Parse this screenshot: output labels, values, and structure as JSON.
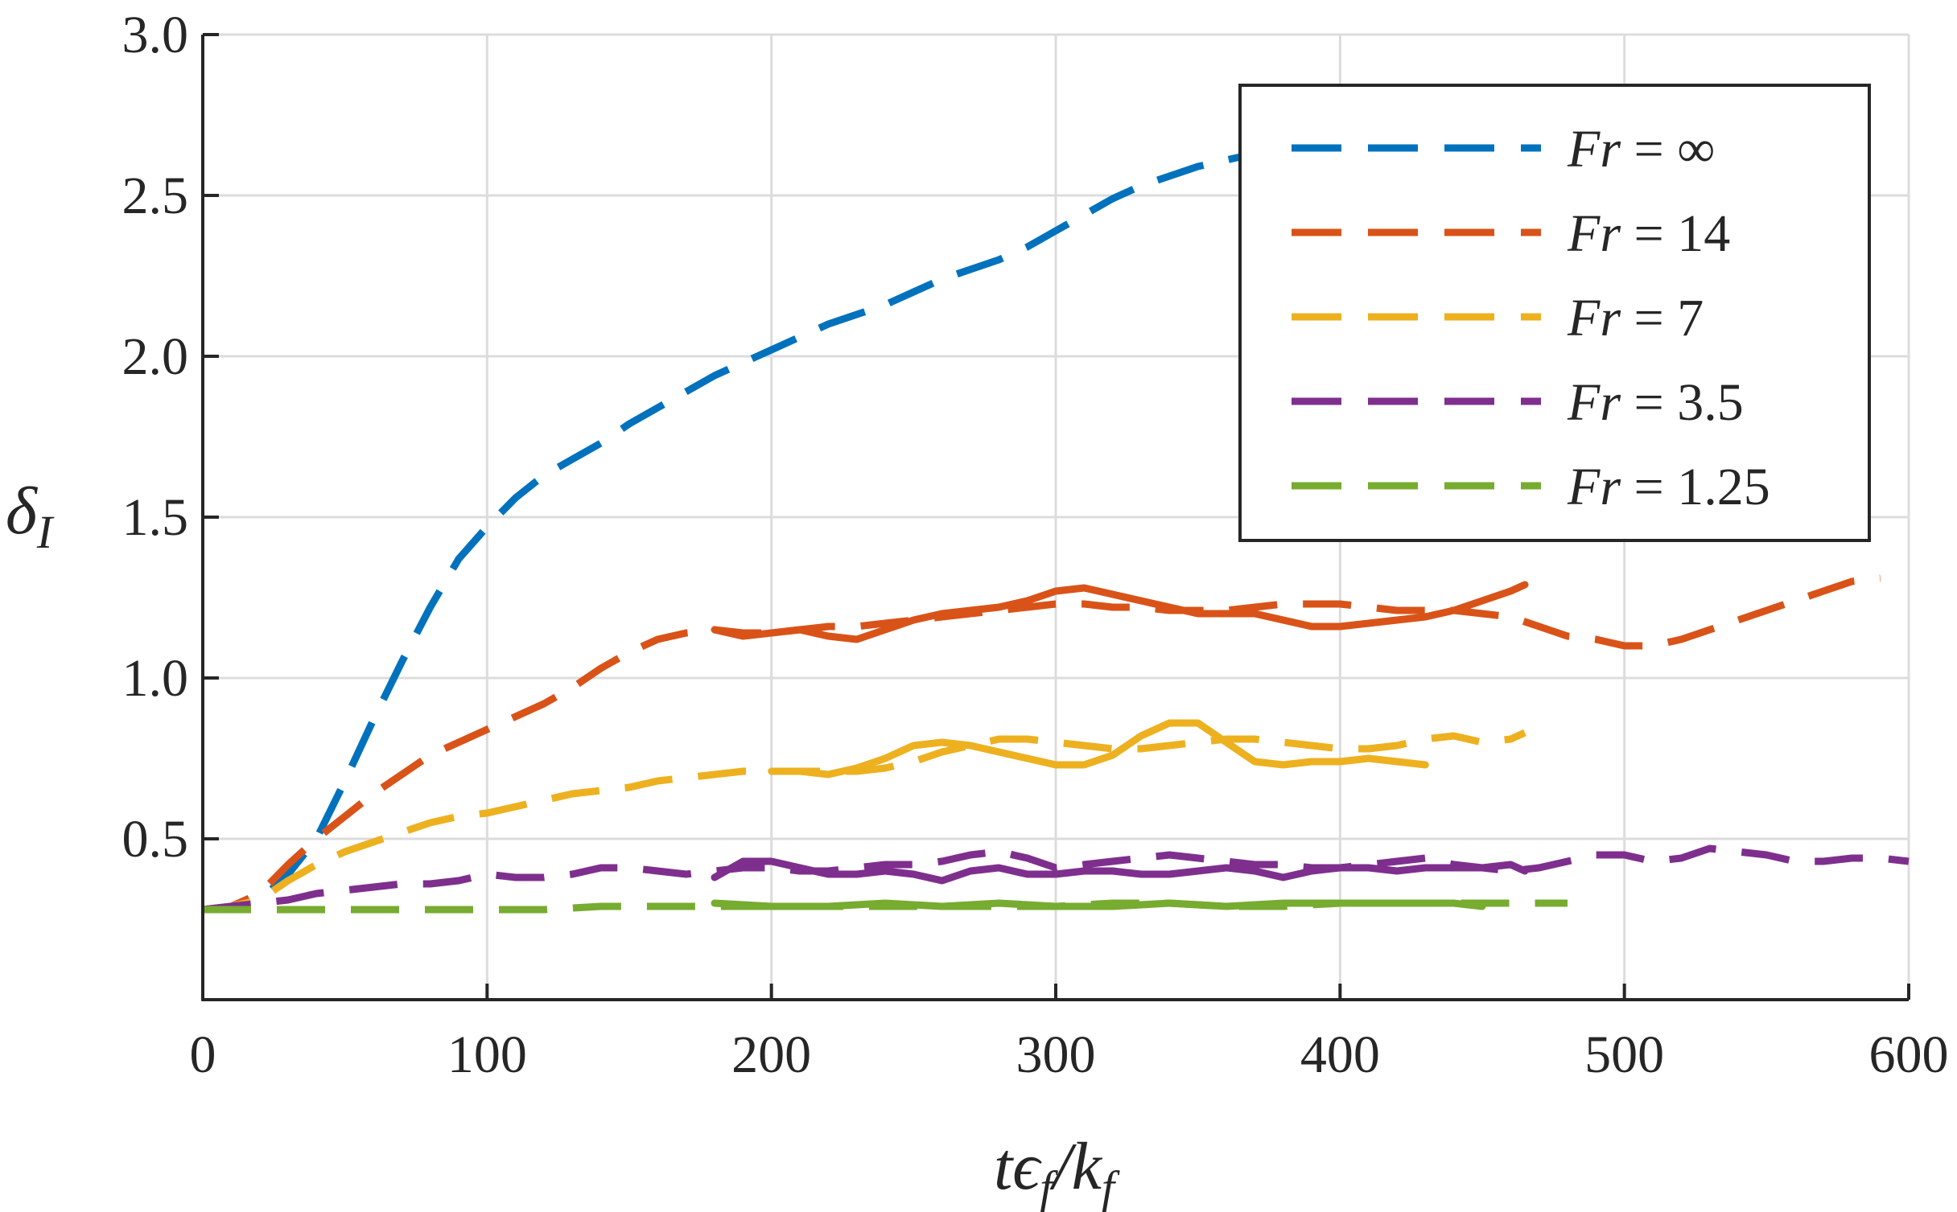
{
  "chart_data": {
    "type": "line",
    "xlabel": "tϵ_f/k_f",
    "ylabel": "δ_I",
    "xlim": [
      0,
      600
    ],
    "ylim": [
      0,
      3.0
    ],
    "x_ticks": [
      0,
      100,
      200,
      300,
      400,
      500,
      600
    ],
    "x_tick_labels": [
      "0",
      "100",
      "200",
      "300",
      "400",
      "500",
      "600"
    ],
    "y_ticks": [
      0.5,
      1.0,
      1.5,
      2.0,
      2.5,
      3.0
    ],
    "y_tick_labels": [
      "0.5",
      "1.0",
      "1.5",
      "2.0",
      "2.5",
      "3.0"
    ],
    "grid": true,
    "legend_position": "top-right",
    "series": [
      {
        "name_prefix": "Fr",
        "name_value": "∞",
        "color": "#0072BD",
        "curves": [
          {
            "style": "dashed",
            "x": [
              0,
              10,
              20,
              30,
              40,
              50,
              60,
              70,
              80,
              90,
              100,
              110,
              120,
              130,
              140,
              150,
              160,
              170,
              180,
              190,
              200,
              210,
              220,
              230,
              240,
              250,
              260,
              270,
              280,
              290,
              300,
              310,
              320,
              330,
              340,
              350,
              360,
              370,
              380,
              390,
              400,
              410,
              420,
              430,
              440,
              450
            ],
            "y": [
              0.28,
              0.29,
              0.31,
              0.39,
              0.5,
              0.68,
              0.87,
              1.05,
              1.22,
              1.37,
              1.47,
              1.56,
              1.63,
              1.68,
              1.73,
              1.79,
              1.84,
              1.89,
              1.94,
              1.98,
              2.02,
              2.06,
              2.1,
              2.13,
              2.16,
              2.2,
              2.24,
              2.27,
              2.3,
              2.34,
              2.39,
              2.44,
              2.49,
              2.53,
              2.56,
              2.59,
              2.61,
              2.63,
              2.66,
              2.68,
              2.7,
              2.72,
              2.74,
              2.76,
              2.78,
              2.8
            ]
          }
        ]
      },
      {
        "name_prefix": "Fr",
        "name_value": "14",
        "color": "#D95319",
        "curves": [
          {
            "style": "dashed",
            "x": [
              0,
              10,
              20,
              30,
              40,
              50,
              60,
              70,
              80,
              90,
              100,
              110,
              120,
              130,
              140,
              150,
              160,
              170,
              180,
              190,
              200,
              210,
              220,
              230,
              240,
              250,
              260,
              270,
              280,
              290,
              300,
              310,
              320,
              330,
              340,
              350,
              360,
              370,
              380,
              390,
              400,
              410,
              420,
              430,
              440,
              450,
              460,
              470,
              480,
              490,
              500,
              510,
              520,
              530,
              540,
              550,
              560,
              570,
              580,
              590
            ],
            "y": [
              0.28,
              0.29,
              0.33,
              0.42,
              0.5,
              0.57,
              0.64,
              0.7,
              0.76,
              0.8,
              0.84,
              0.88,
              0.92,
              0.97,
              1.03,
              1.08,
              1.12,
              1.14,
              1.15,
              1.14,
              1.14,
              1.15,
              1.16,
              1.16,
              1.17,
              1.18,
              1.19,
              1.2,
              1.21,
              1.22,
              1.23,
              1.23,
              1.22,
              1.22,
              1.21,
              1.21,
              1.21,
              1.22,
              1.23,
              1.23,
              1.23,
              1.22,
              1.21,
              1.21,
              1.21,
              1.2,
              1.19,
              1.16,
              1.13,
              1.12,
              1.1,
              1.1,
              1.12,
              1.15,
              1.18,
              1.21,
              1.24,
              1.27,
              1.3,
              1.31
            ]
          },
          {
            "style": "solid",
            "x": [
              180,
              190,
              200,
              210,
              220,
              230,
              240,
              250,
              260,
              270,
              280,
              290,
              300,
              310,
              320,
              330,
              340,
              350,
              360,
              370,
              380,
              390,
              400,
              410,
              420,
              430,
              440,
              450,
              460,
              465
            ],
            "y": [
              1.15,
              1.13,
              1.14,
              1.15,
              1.13,
              1.12,
              1.15,
              1.18,
              1.2,
              1.21,
              1.22,
              1.24,
              1.27,
              1.28,
              1.26,
              1.24,
              1.22,
              1.2,
              1.2,
              1.2,
              1.18,
              1.16,
              1.16,
              1.17,
              1.18,
              1.19,
              1.21,
              1.24,
              1.27,
              1.29
            ]
          }
        ]
      },
      {
        "name_prefix": "Fr",
        "name_value": "7",
        "color": "#EDB120",
        "curves": [
          {
            "style": "dashed",
            "x": [
              0,
              10,
              20,
              30,
              40,
              50,
              60,
              70,
              80,
              90,
              100,
              110,
              120,
              130,
              140,
              150,
              160,
              170,
              180,
              190,
              200,
              210,
              220,
              230,
              240,
              250,
              260,
              270,
              280,
              290,
              300,
              310,
              320,
              330,
              340,
              350,
              360,
              370,
              380,
              390,
              400,
              410,
              420,
              430,
              440,
              450,
              460,
              465
            ],
            "y": [
              0.28,
              0.29,
              0.31,
              0.37,
              0.42,
              0.46,
              0.49,
              0.52,
              0.55,
              0.57,
              0.58,
              0.6,
              0.62,
              0.64,
              0.65,
              0.66,
              0.68,
              0.69,
              0.7,
              0.71,
              0.71,
              0.71,
              0.71,
              0.71,
              0.72,
              0.74,
              0.77,
              0.79,
              0.81,
              0.81,
              0.8,
              0.79,
              0.78,
              0.78,
              0.79,
              0.8,
              0.81,
              0.81,
              0.8,
              0.79,
              0.78,
              0.78,
              0.79,
              0.81,
              0.82,
              0.8,
              0.81,
              0.83
            ]
          },
          {
            "style": "solid",
            "x": [
              200,
              210,
              220,
              230,
              240,
              250,
              260,
              270,
              280,
              290,
              300,
              310,
              320,
              330,
              340,
              350,
              360,
              370,
              380,
              390,
              400,
              410,
              420,
              430
            ],
            "y": [
              0.71,
              0.71,
              0.7,
              0.72,
              0.75,
              0.79,
              0.8,
              0.79,
              0.77,
              0.75,
              0.73,
              0.73,
              0.76,
              0.82,
              0.86,
              0.86,
              0.8,
              0.74,
              0.73,
              0.74,
              0.74,
              0.75,
              0.74,
              0.73
            ]
          }
        ]
      },
      {
        "name_prefix": "Fr",
        "name_value": "3.5",
        "color": "#7E2F8E",
        "curves": [
          {
            "style": "dashed",
            "x": [
              0,
              10,
              20,
              30,
              40,
              50,
              60,
              70,
              80,
              90,
              100,
              110,
              120,
              130,
              140,
              150,
              160,
              170,
              180,
              190,
              200,
              210,
              220,
              230,
              240,
              250,
              260,
              270,
              280,
              290,
              300,
              310,
              320,
              330,
              340,
              350,
              360,
              370,
              380,
              390,
              400,
              410,
              420,
              430,
              440,
              450,
              460,
              470,
              480,
              490,
              500,
              510,
              520,
              530,
              540,
              550,
              560,
              570,
              580,
              590,
              600
            ],
            "y": [
              0.28,
              0.29,
              0.3,
              0.31,
              0.33,
              0.34,
              0.35,
              0.36,
              0.36,
              0.37,
              0.39,
              0.38,
              0.38,
              0.39,
              0.41,
              0.41,
              0.4,
              0.39,
              0.4,
              0.41,
              0.41,
              0.4,
              0.4,
              0.41,
              0.42,
              0.42,
              0.43,
              0.45,
              0.46,
              0.44,
              0.41,
              0.42,
              0.43,
              0.44,
              0.45,
              0.44,
              0.43,
              0.42,
              0.42,
              0.41,
              0.41,
              0.42,
              0.43,
              0.44,
              0.42,
              0.41,
              0.4,
              0.41,
              0.43,
              0.45,
              0.45,
              0.43,
              0.44,
              0.47,
              0.46,
              0.45,
              0.43,
              0.43,
              0.44,
              0.44,
              0.43
            ]
          },
          {
            "style": "solid",
            "x": [
              180,
              190,
              200,
              210,
              220,
              230,
              240,
              250,
              260,
              270,
              280,
              290,
              300,
              310,
              320,
              330,
              340,
              350,
              360,
              370,
              380,
              390,
              400,
              410,
              420,
              430,
              440,
              450,
              460,
              465
            ],
            "y": [
              0.38,
              0.43,
              0.43,
              0.41,
              0.39,
              0.39,
              0.4,
              0.39,
              0.37,
              0.4,
              0.41,
              0.39,
              0.39,
              0.4,
              0.4,
              0.39,
              0.39,
              0.4,
              0.41,
              0.4,
              0.38,
              0.4,
              0.41,
              0.41,
              0.4,
              0.41,
              0.41,
              0.41,
              0.42,
              0.4
            ]
          }
        ]
      },
      {
        "name_prefix": "Fr",
        "name_value": "1.25",
        "color": "#77AC30",
        "curves": [
          {
            "style": "dashed",
            "x": [
              0,
              20,
              40,
              60,
              80,
              100,
              120,
              140,
              160,
              180,
              200,
              220,
              240,
              260,
              280,
              300,
              320,
              340,
              360,
              380,
              400,
              420,
              440,
              460,
              480
            ],
            "y": [
              0.28,
              0.28,
              0.28,
              0.28,
              0.28,
              0.28,
              0.28,
              0.29,
              0.29,
              0.29,
              0.29,
              0.29,
              0.29,
              0.29,
              0.29,
              0.29,
              0.3,
              0.3,
              0.29,
              0.29,
              0.3,
              0.3,
              0.3,
              0.3,
              0.3
            ]
          },
          {
            "style": "solid",
            "x": [
              180,
              200,
              220,
              240,
              260,
              280,
              300,
              320,
              340,
              360,
              380,
              400,
              420,
              440,
              450
            ],
            "y": [
              0.3,
              0.29,
              0.29,
              0.3,
              0.29,
              0.3,
              0.29,
              0.29,
              0.3,
              0.29,
              0.3,
              0.3,
              0.3,
              0.3,
              0.29
            ]
          }
        ]
      }
    ]
  }
}
